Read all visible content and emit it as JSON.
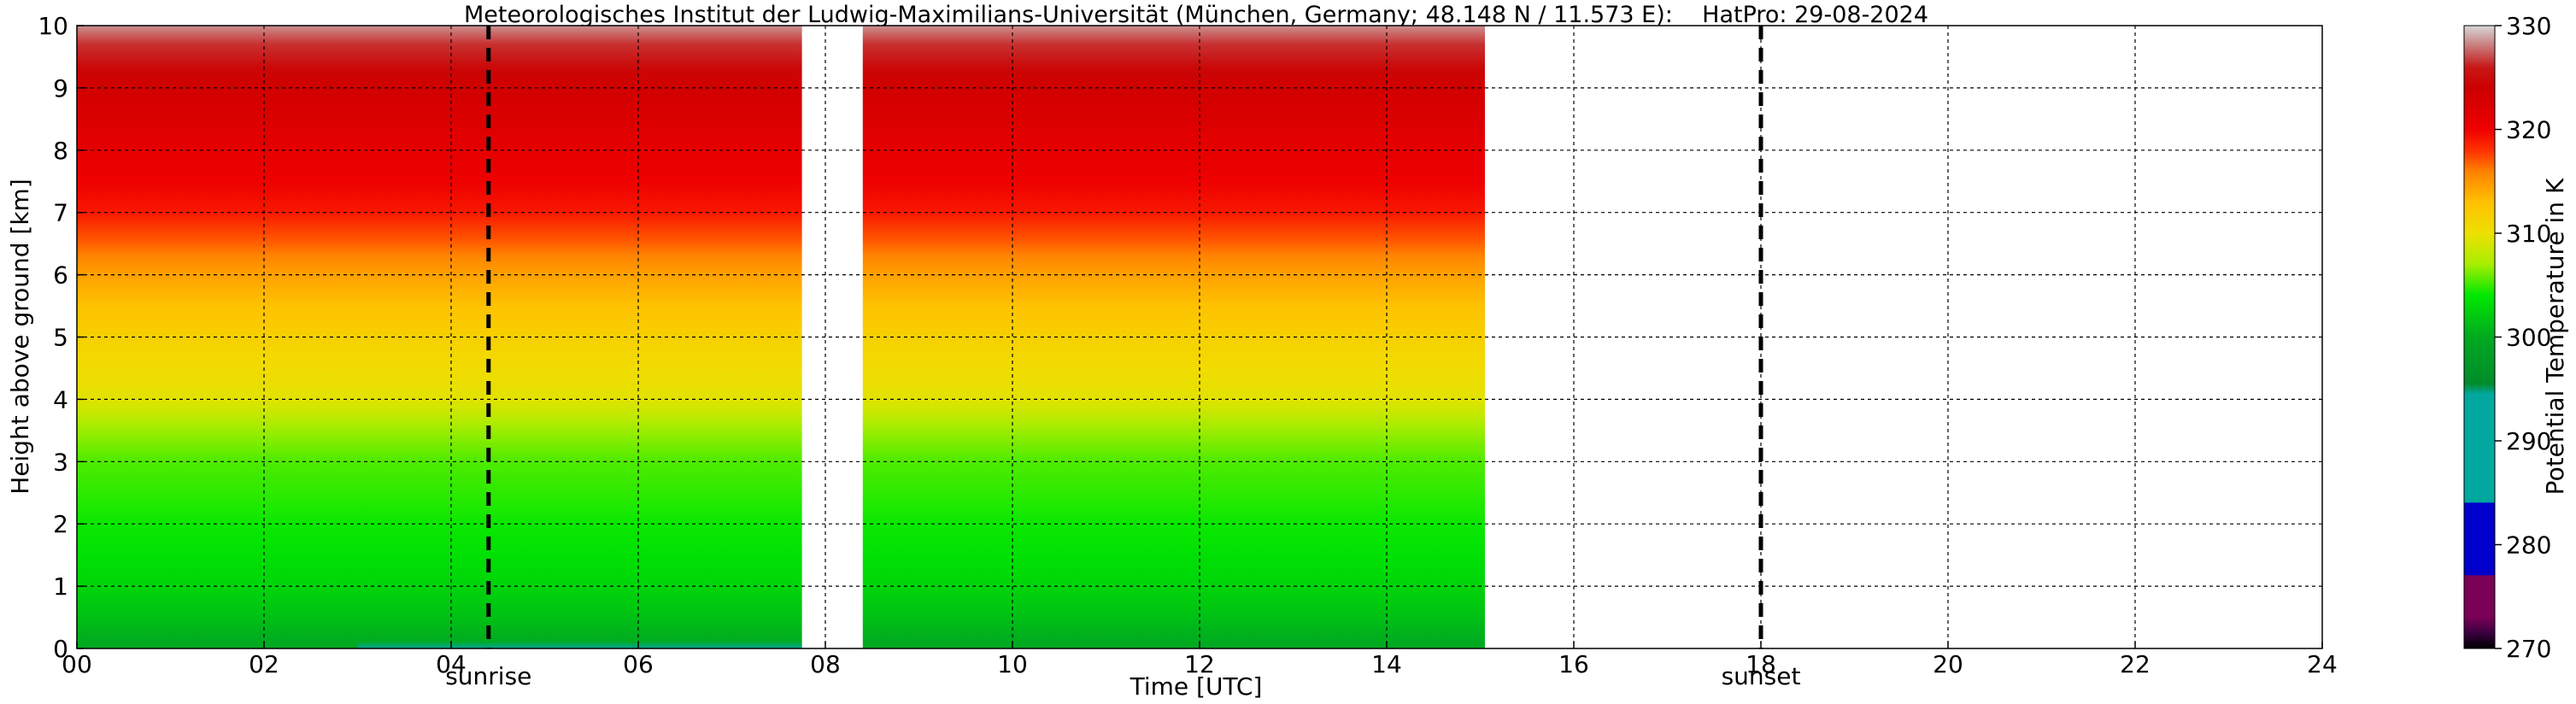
{
  "chart_data": {
    "type": "heatmap",
    "title": "Meteorologisches Institut der Ludwig-Maximilians-Universität (München, Germany; 48.148 N / 11.573 E):    HatPro: 29-08-2024",
    "xlabel": "Time [UTC]",
    "ylabel": "Height above ground [km]",
    "xlim": [
      0,
      24
    ],
    "ylim": [
      0,
      10
    ],
    "x_ticks": [
      "00",
      "02",
      "04",
      "06",
      "08",
      "10",
      "12",
      "14",
      "16",
      "18",
      "20",
      "22",
      "24"
    ],
    "y_ticks": [
      "0",
      "1",
      "2",
      "3",
      "4",
      "5",
      "6",
      "7",
      "8",
      "9",
      "10"
    ],
    "grid": true,
    "markers": [
      {
        "label": "sunrise",
        "time": 4.4
      },
      {
        "label": "sunset",
        "time": 18.0
      }
    ],
    "data_segments": [
      {
        "start": 0.0,
        "end": 7.75
      },
      {
        "start": 8.4,
        "end": 15.05
      }
    ],
    "profile": {
      "heights_km": [
        0,
        0.25,
        0.5,
        1,
        1.5,
        2,
        2.5,
        3,
        3.4,
        3.7,
        4,
        4.5,
        5,
        5.5,
        6,
        6.3,
        6.6,
        7,
        7.5,
        8,
        8.5,
        9,
        9.3,
        9.7,
        10
      ],
      "theta_K": [
        299.5,
        300.5,
        301.5,
        302.8,
        303.5,
        304.2,
        304.8,
        305.4,
        306.5,
        307.8,
        309.5,
        310.5,
        311.5,
        312.8,
        314.5,
        315.8,
        317.2,
        319,
        320,
        321,
        322.2,
        323.4,
        324.5,
        326.5,
        328.5
      ]
    },
    "colorbar": {
      "label": "Potential Temperature in K",
      "min": 270,
      "max": 330,
      "ticks": [
        "270",
        "280",
        "290",
        "300",
        "310",
        "320",
        "330"
      ],
      "stops": [
        {
          "value": 270,
          "color": "#000000"
        },
        {
          "value": 271.5,
          "color": "#3a0040"
        },
        {
          "value": 273,
          "color": "#7a0058"
        },
        {
          "value": 277,
          "color": "#7a0058"
        },
        {
          "value": 277.1,
          "color": "#0000cc"
        },
        {
          "value": 284,
          "color": "#0000cc"
        },
        {
          "value": 284.1,
          "color": "#00a8a0"
        },
        {
          "value": 294.5,
          "color": "#00a8a0"
        },
        {
          "value": 295.5,
          "color": "#008c2c"
        },
        {
          "value": 300,
          "color": "#00aa20"
        },
        {
          "value": 304,
          "color": "#00e800"
        },
        {
          "value": 307,
          "color": "#a8ee00"
        },
        {
          "value": 310,
          "color": "#eee000"
        },
        {
          "value": 313,
          "color": "#ffc000"
        },
        {
          "value": 316,
          "color": "#ff8000"
        },
        {
          "value": 318,
          "color": "#ff3000"
        },
        {
          "value": 320,
          "color": "#ee0000"
        },
        {
          "value": 324,
          "color": "#cc0000"
        },
        {
          "value": 326,
          "color": "#c81818"
        },
        {
          "value": 328,
          "color": "#c87878"
        },
        {
          "value": 330,
          "color": "#d8d8d8"
        }
      ]
    }
  }
}
